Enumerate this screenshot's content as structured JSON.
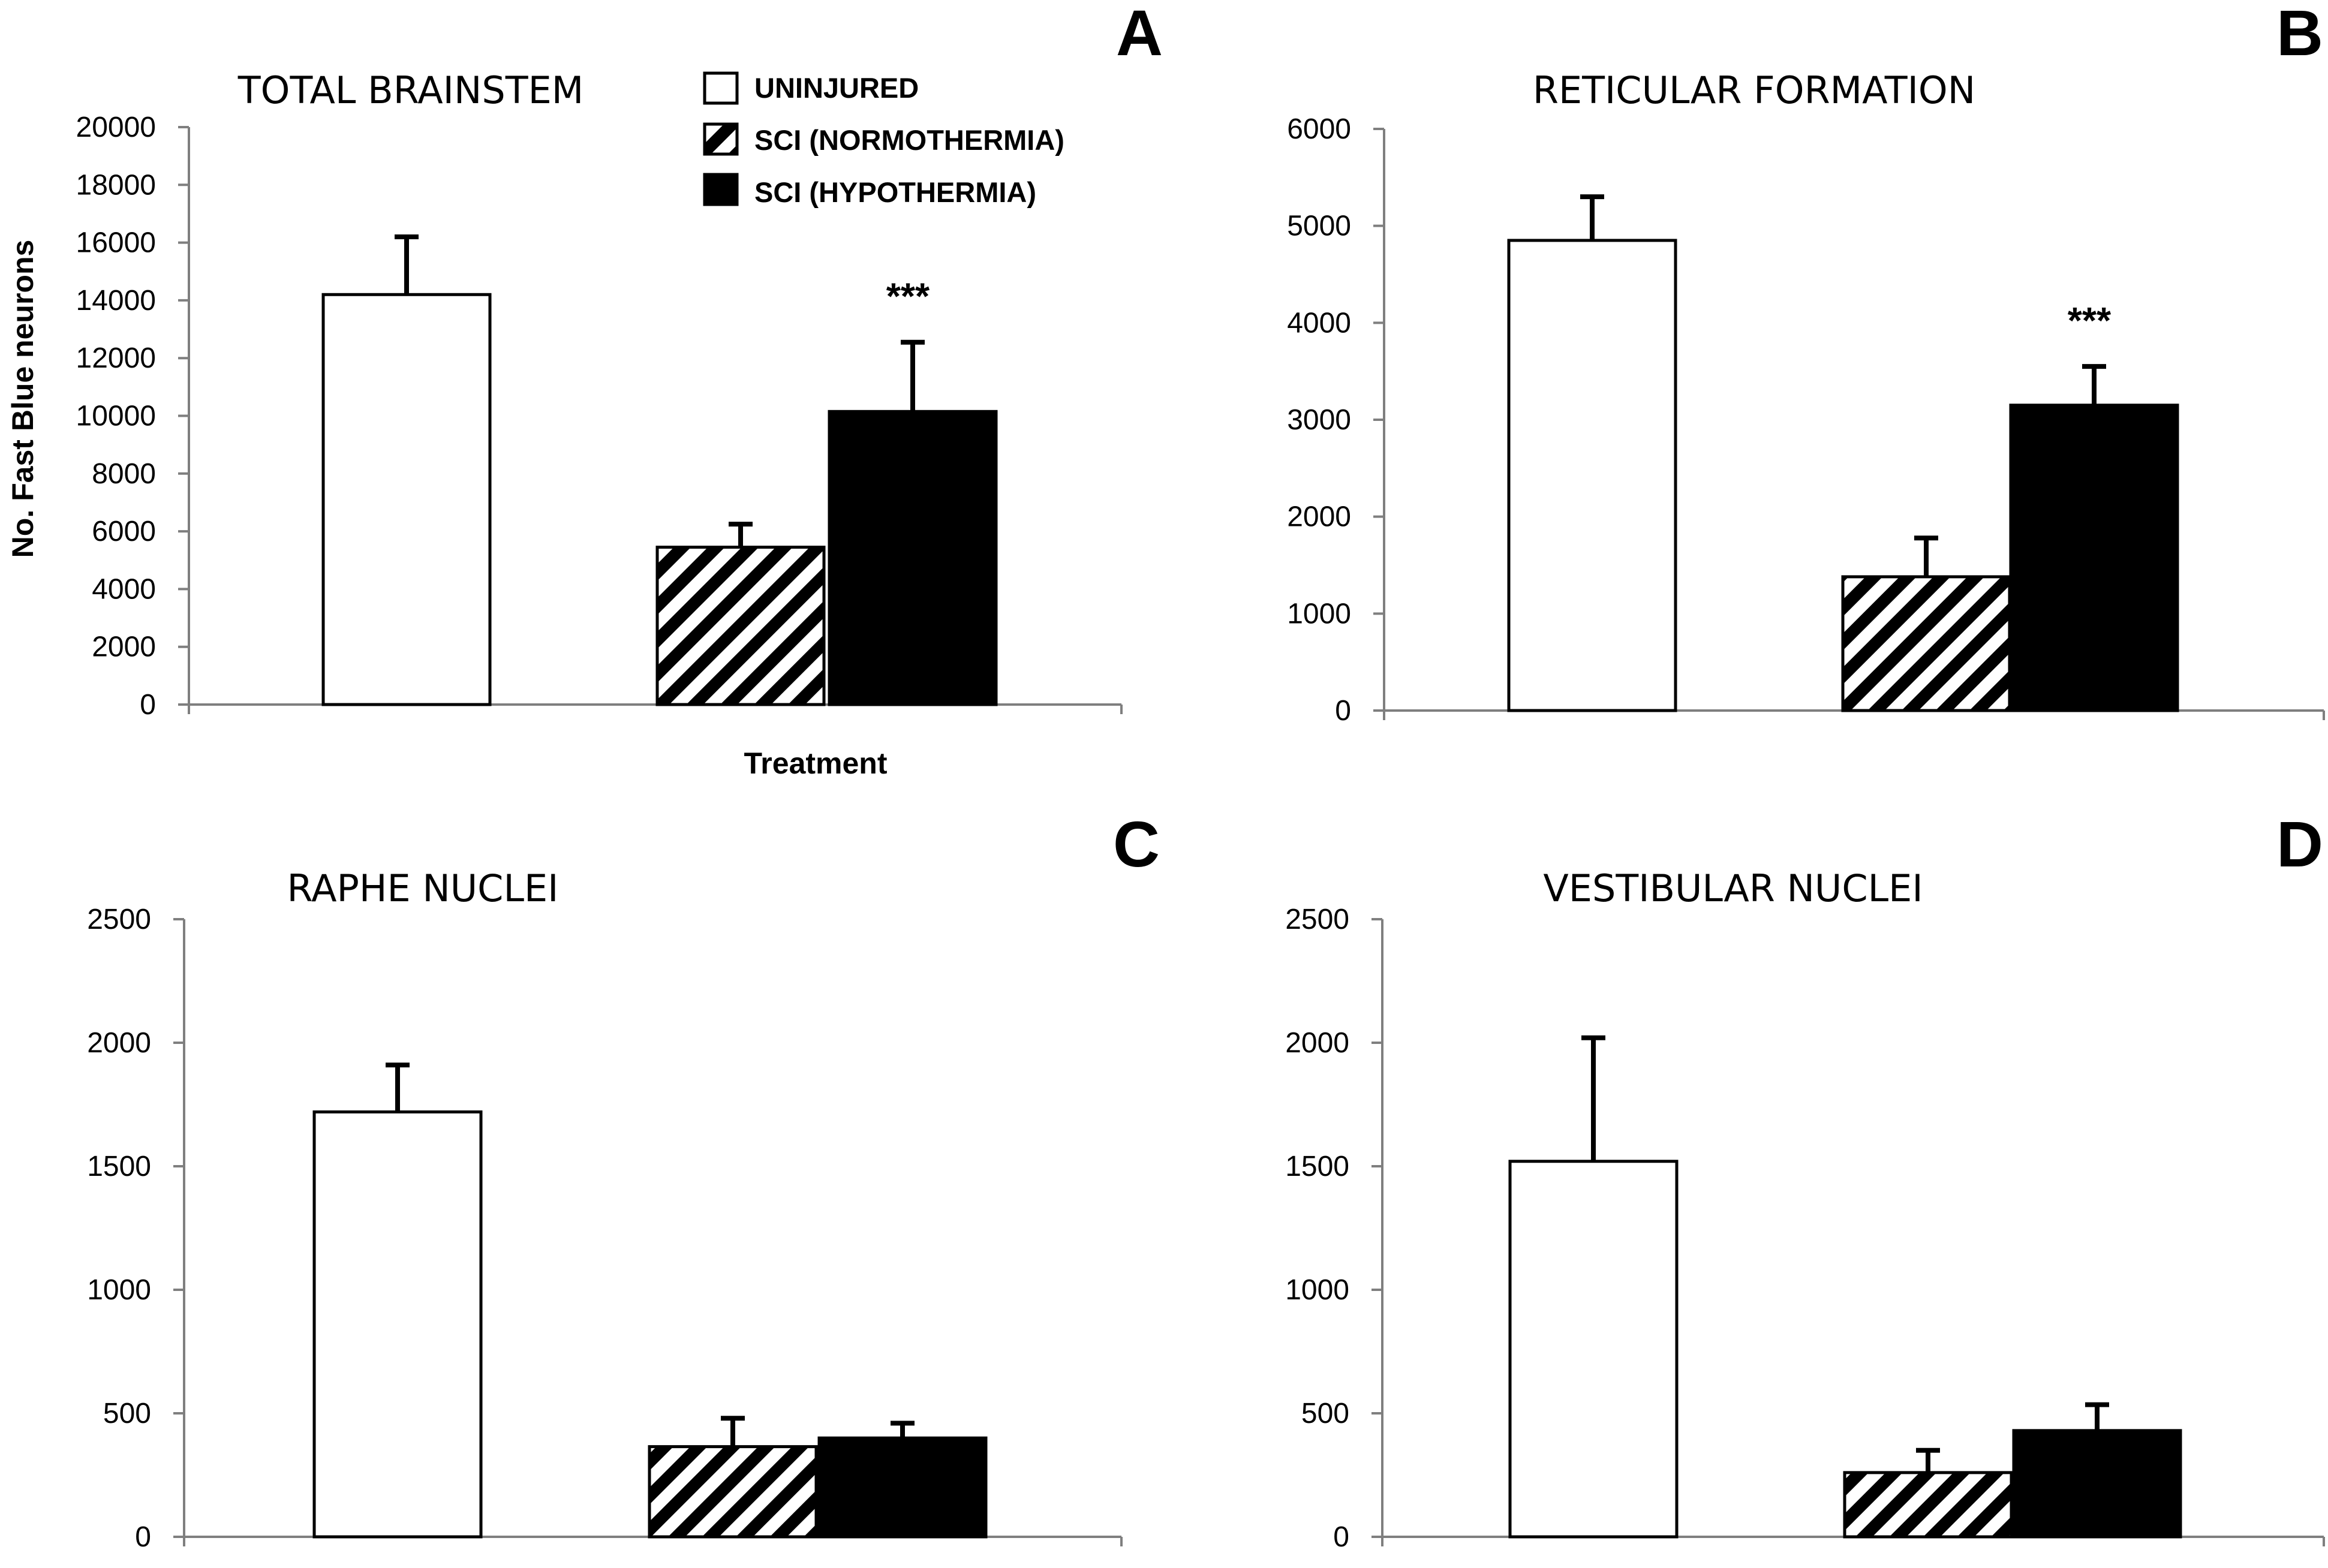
{
  "legend": [
    {
      "key": "uninjured",
      "label": "UNINJURED",
      "fill": "white"
    },
    {
      "key": "normothermia",
      "label": "SCI (NORMOTHERMIA)",
      "fill": "hatch"
    },
    {
      "key": "hypothermia",
      "label": "SCI (HYPOTHERMIA)",
      "fill": "black"
    }
  ],
  "colors": {
    "bar_black": "#000000",
    "bar_white": "#ffffff",
    "axis": "#7f7f7f"
  },
  "chart_data": [
    {
      "type": "bar",
      "panel": "A",
      "title": "TOTAL BRAINSTEM",
      "ylabel": "No. Fast Blue neurons",
      "xlabel": "Treatment",
      "ylim": [
        0,
        20000
      ],
      "yticks": [
        0,
        2000,
        4000,
        6000,
        8000,
        10000,
        12000,
        14000,
        16000,
        18000,
        20000
      ],
      "categories": [
        "UNINJURED",
        "SCI (NORMOTHERMIA)",
        "SCI (HYPOTHERMIA)"
      ],
      "values": [
        14200,
        5450,
        10150
      ],
      "errors": [
        2000,
        800,
        2400
      ],
      "significance": "***"
    },
    {
      "type": "bar",
      "panel": "B",
      "title": "RETICULAR FORMATION",
      "ylim": [
        0,
        6000
      ],
      "yticks": [
        0,
        1000,
        2000,
        3000,
        4000,
        5000,
        6000
      ],
      "categories": [
        "UNINJURED",
        "SCI (NORMOTHERMIA)",
        "SCI (HYPOTHERMIA)"
      ],
      "values": [
        4850,
        1380,
        3150
      ],
      "errors": [
        450,
        400,
        400
      ],
      "significance": "***"
    },
    {
      "type": "bar",
      "panel": "C",
      "title": "RAPHE NUCLEI",
      "ylim": [
        0,
        2500
      ],
      "yticks": [
        0,
        500,
        1000,
        1500,
        2000,
        2500
      ],
      "categories": [
        "UNINJURED",
        "SCI (NORMOTHERMIA)",
        "SCI (HYPOTHERMIA)"
      ],
      "values": [
        1720,
        365,
        400
      ],
      "errors": [
        190,
        115,
        60
      ]
    },
    {
      "type": "bar",
      "panel": "D",
      "title": "VESTIBULAR NUCLEI",
      "ylim": [
        0,
        2500
      ],
      "yticks": [
        0,
        500,
        1000,
        1500,
        2000,
        2500
      ],
      "categories": [
        "UNINJURED",
        "SCI (NORMOTHERMIA)",
        "SCI (HYPOTHERMIA)"
      ],
      "values": [
        1520,
        260,
        430
      ],
      "errors": [
        500,
        90,
        105
      ]
    }
  ]
}
